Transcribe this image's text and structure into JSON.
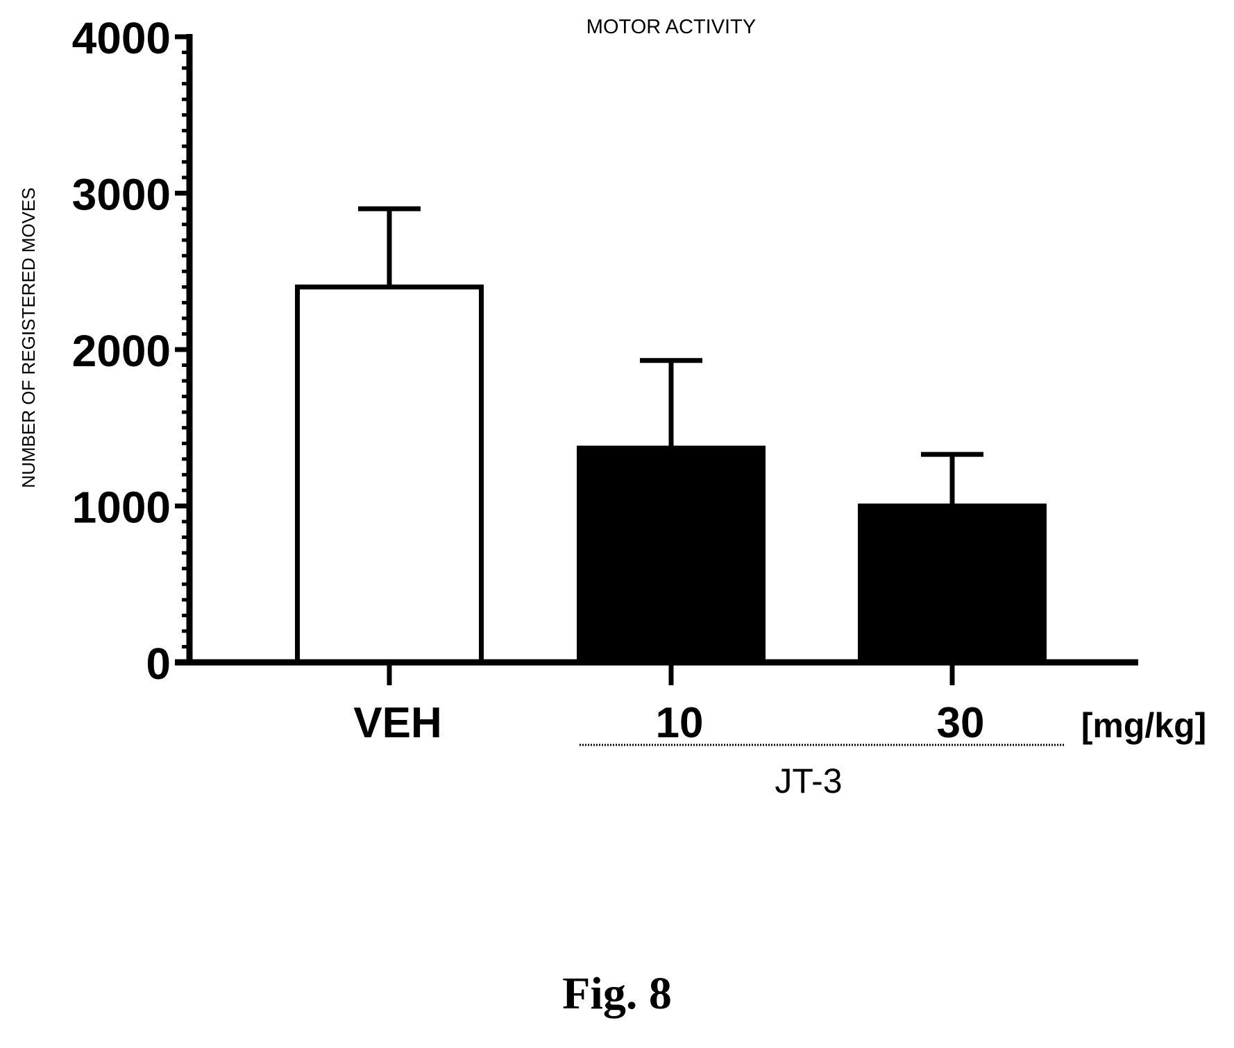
{
  "chart_data": {
    "type": "bar",
    "title": "MOTOR ACTIVITY",
    "ylabel": "NUMBER OF REGISTERED MOVES",
    "ylim": [
      0,
      4000
    ],
    "yticks": [
      "0",
      "1000",
      "2000",
      "3000",
      "4000"
    ],
    "categories": [
      "VEH",
      "10",
      "30"
    ],
    "values": [
      2400,
      1370,
      1000
    ],
    "error_plus": [
      500,
      560,
      330
    ],
    "bar_fills": [
      "white",
      "black",
      "black"
    ],
    "unit_label": "[mg/kg]",
    "group_label": "JT-3",
    "grid": false,
    "legend": "none"
  },
  "caption": "Fig. 8"
}
